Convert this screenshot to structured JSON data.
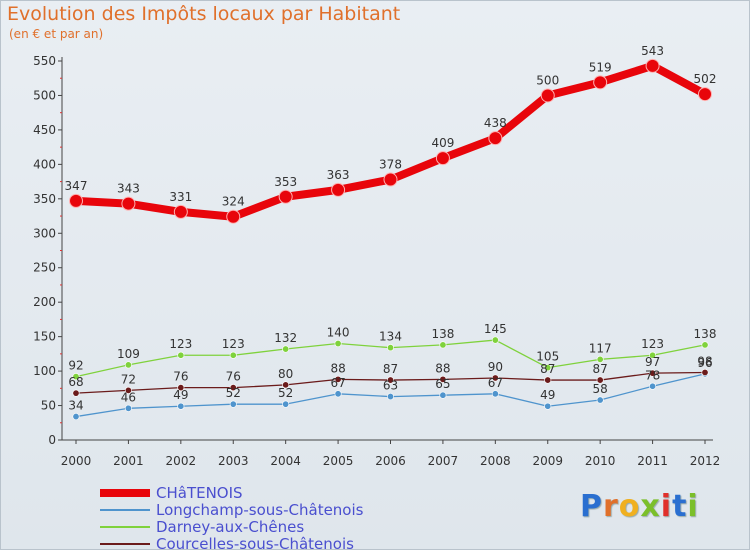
{
  "chart_data": {
    "type": "line",
    "title": "Evolution des Impôts locaux par Habitant",
    "subtitle": "(en € et par an)",
    "xlabel": "",
    "ylabel": "",
    "ylim": [
      0,
      550
    ],
    "yticks": [
      0,
      50,
      100,
      150,
      200,
      250,
      300,
      350,
      400,
      450,
      500,
      550
    ],
    "categories": [
      "2000",
      "2001",
      "2002",
      "2003",
      "2004",
      "2005",
      "2006",
      "2007",
      "2008",
      "2009",
      "2010",
      "2011",
      "2012"
    ],
    "grid": false,
    "legend_position": "bottom-left",
    "series": [
      {
        "name": "CHâTENOIS",
        "color": "#e8050b",
        "values": [
          347,
          343,
          331,
          324,
          353,
          363,
          378,
          409,
          438,
          500,
          519,
          543,
          502
        ]
      },
      {
        "name": "Longchamp-sous-Châtenois",
        "color": "#4f94cd",
        "values": [
          34,
          46,
          49,
          52,
          52,
          67,
          63,
          65,
          67,
          49,
          58,
          78,
          96
        ]
      },
      {
        "name": "Darney-aux-Chênes",
        "color": "#7fd23c",
        "values": [
          92,
          109,
          123,
          123,
          132,
          140,
          134,
          138,
          145,
          105,
          117,
          123,
          138
        ]
      },
      {
        "name": "Courcelles-sous-Châtenois",
        "color": "#6b1b1b",
        "values": [
          68,
          72,
          76,
          76,
          80,
          88,
          87,
          88,
          90,
          87,
          87,
          97,
          98
        ]
      }
    ]
  },
  "logo": {
    "text": "Proxiti",
    "colors": [
      "#2a6fd0",
      "#e0702b",
      "#f0b020",
      "#7bbf2a",
      "#e0302b",
      "#2a6fd0",
      "#7bbf2a"
    ]
  }
}
